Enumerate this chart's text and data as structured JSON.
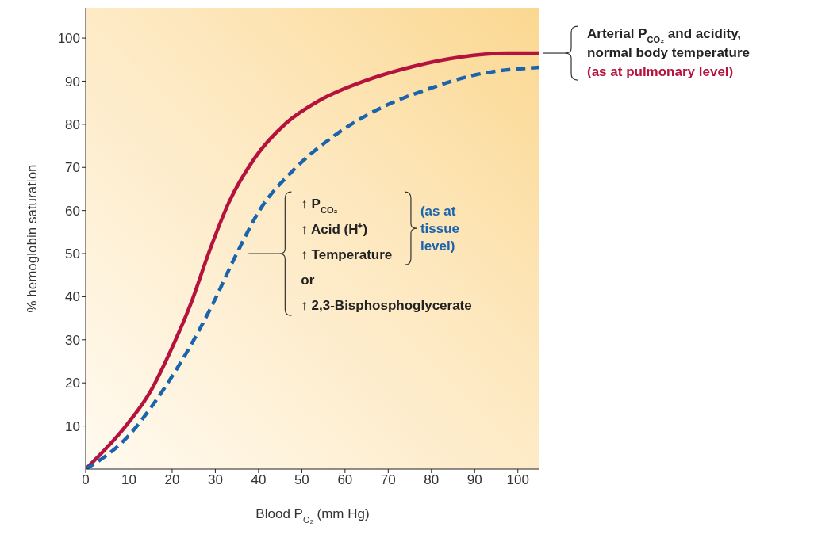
{
  "chart_data": {
    "type": "line",
    "xlabel": "Blood P$_{O₂}$ (mm Hg)",
    "ylabel": "% hemoglobin saturation",
    "xlim": [
      0,
      105
    ],
    "ylim": [
      0,
      107
    ],
    "xticks": [
      0,
      10,
      20,
      30,
      40,
      50,
      60,
      70,
      80,
      90,
      100
    ],
    "yticks": [
      10,
      20,
      30,
      40,
      50,
      60,
      70,
      80,
      90,
      100
    ],
    "marker": "none",
    "series": [
      {
        "name": "(as at pulmonary level)",
        "color": "#b5123e",
        "line_style": "solid",
        "x": [
          0,
          9.6,
          14.8,
          19.9,
          24.3,
          28.7,
          33.1,
          39,
          46.3,
          53.7,
          64.7,
          75.7,
          86.7,
          97.7,
          105
        ],
        "values": [
          0,
          10.4,
          17.7,
          28,
          38.3,
          50.8,
          61.8,
          72,
          80.2,
          85.3,
          90.1,
          93.4,
          95.6,
          96.5,
          96.5
        ]
      },
      {
        "name": "(as at tissue level)",
        "color": "#1a63ad",
        "line_style": "dashed",
        "x": [
          0,
          9.6,
          17,
          24.3,
          29.4,
          34.6,
          40.4,
          47.8,
          57.3,
          68.3,
          79.3,
          90.3,
          105
        ],
        "values": [
          0,
          7.4,
          17,
          28.7,
          38.3,
          49.3,
          60.3,
          69.1,
          77.2,
          83.8,
          88.2,
          91.5,
          93.2
        ]
      }
    ],
    "annotations": [
      "Arterial P$_{CO₂}$ and acidity,\nnormal body temperature",
      "↑ P$_{CO₂}$\n↑ Acid (H⁺)\n↑ Temperature\nor\n↑ 2,3-Bisphosphoglycerate"
    ]
  }
}
